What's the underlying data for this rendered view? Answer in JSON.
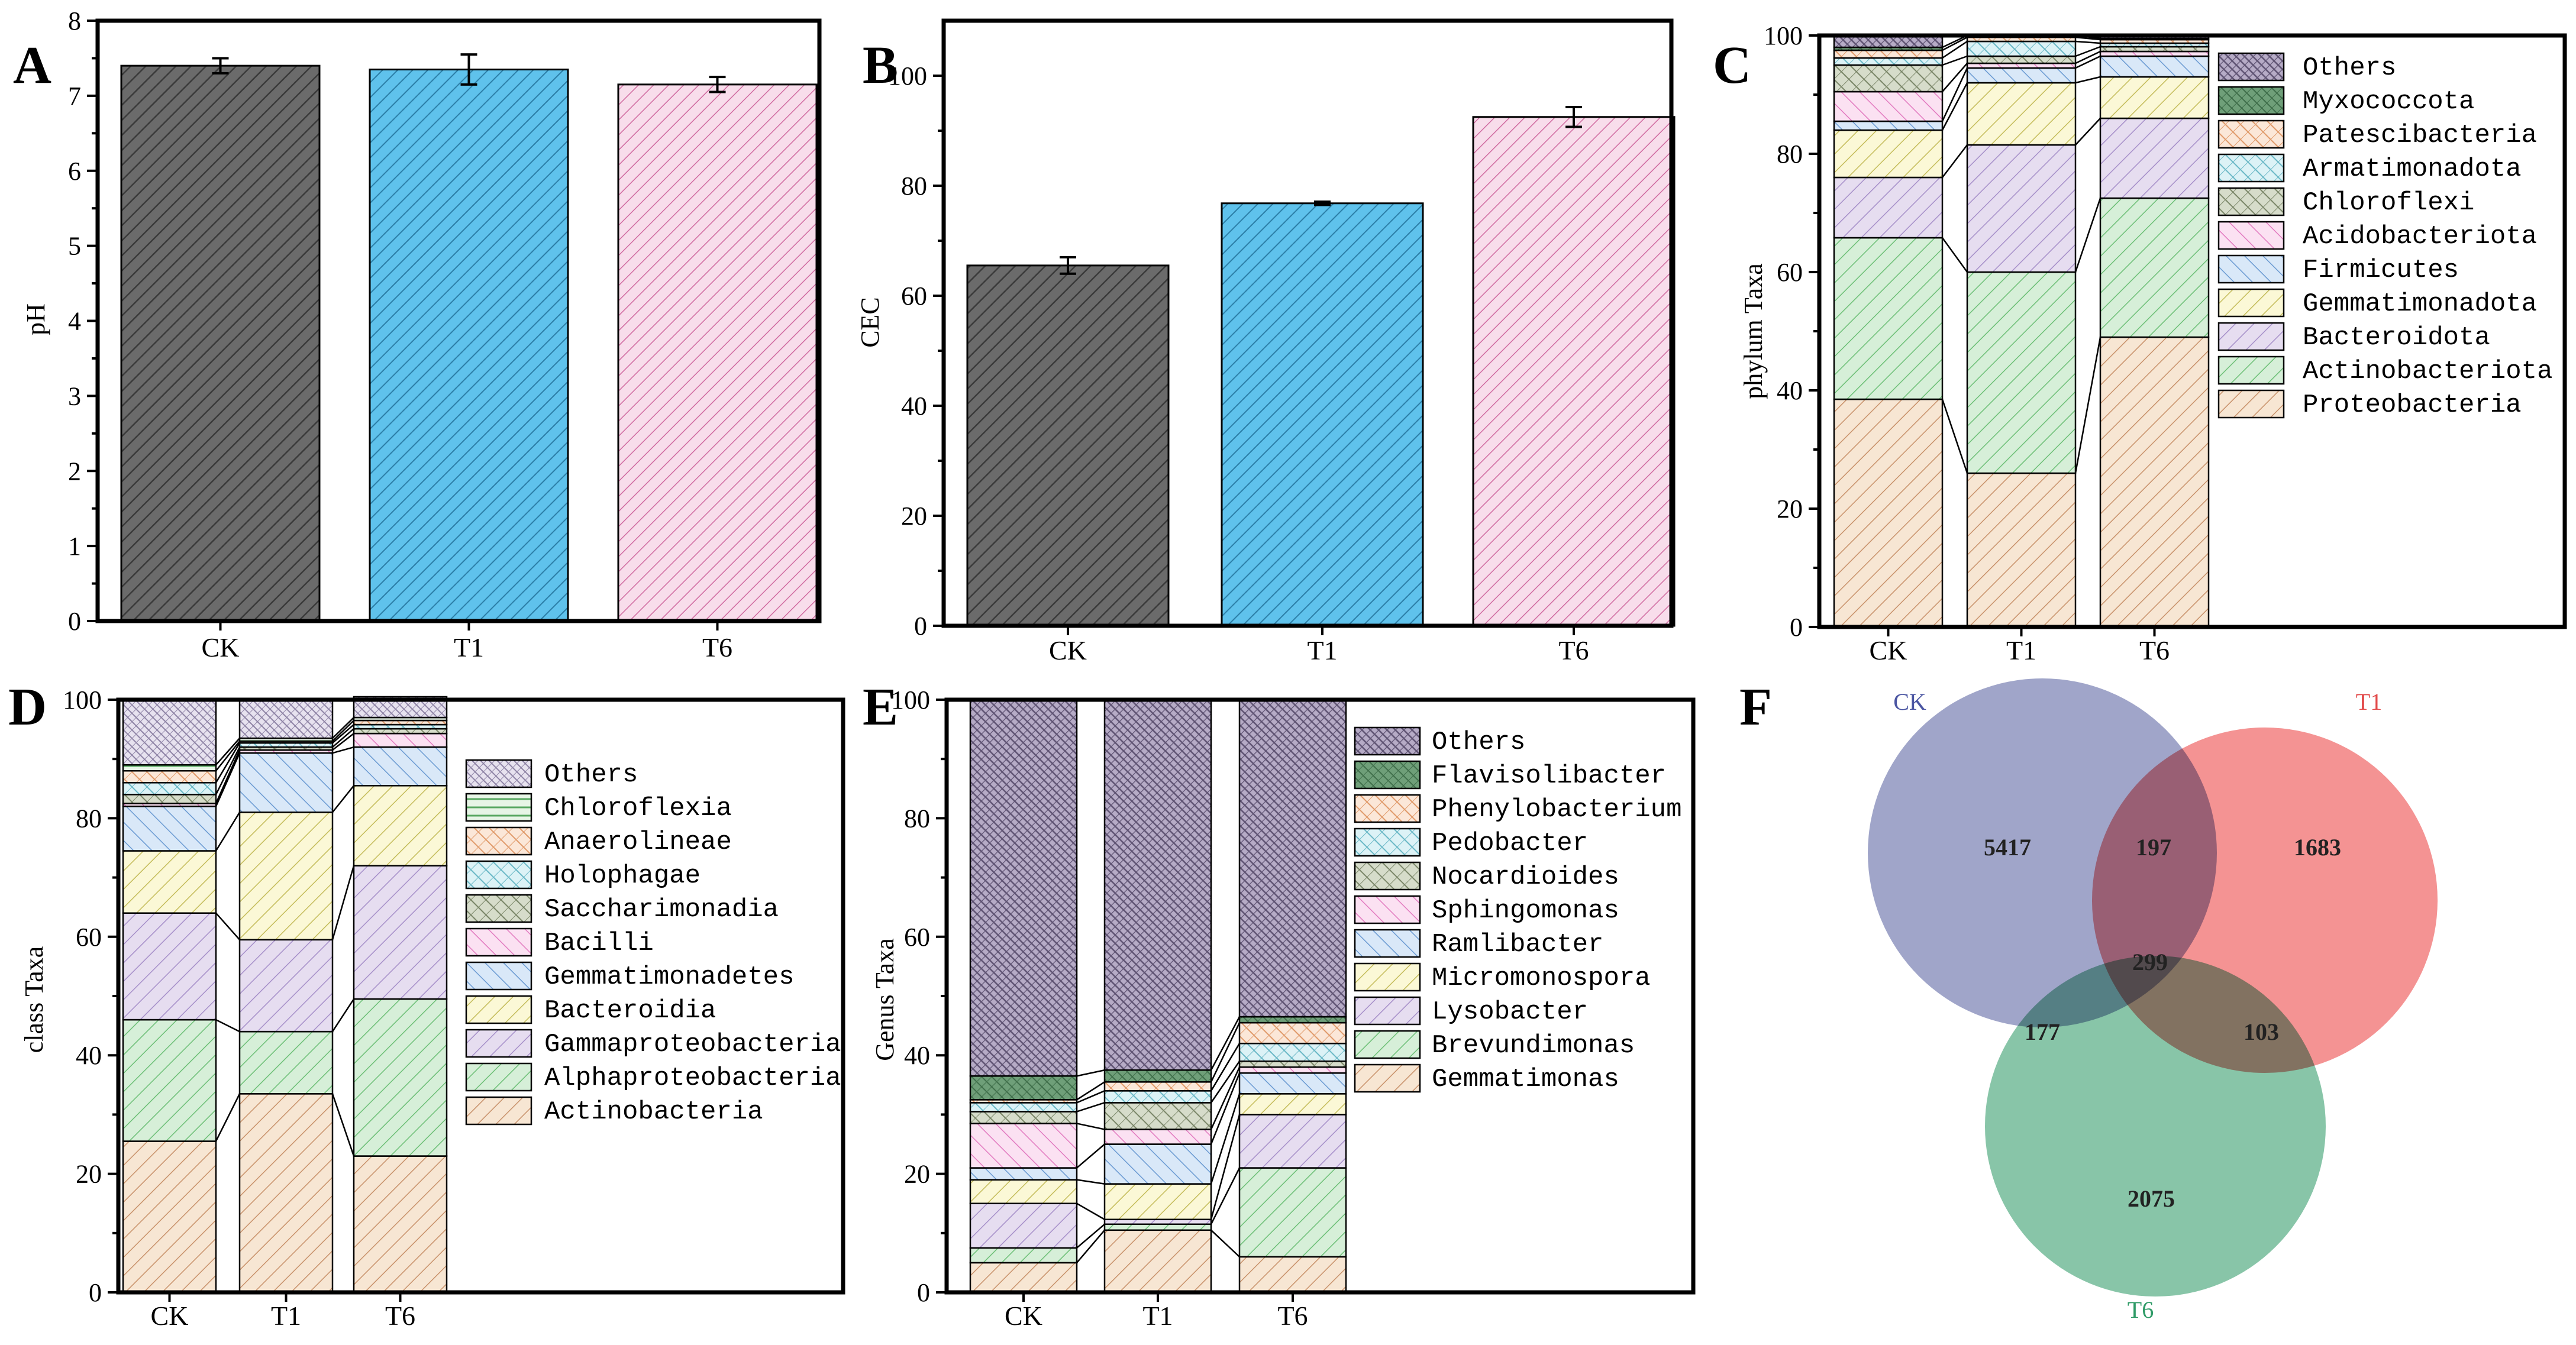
{
  "panels": {
    "A": {
      "letter": "A"
    },
    "B": {
      "letter": "B"
    },
    "C": {
      "letter": "C"
    },
    "D": {
      "letter": "D"
    },
    "E": {
      "letter": "E"
    },
    "F": {
      "letter": "F"
    }
  },
  "colors": {
    "CK": "#6b6b6b",
    "T1": "#5fc2ec",
    "T6": "#f4cde3"
  },
  "chart_data": [
    {
      "id": "A",
      "type": "bar",
      "categories": [
        "CK",
        "T1",
        "T6"
      ],
      "values": [
        7.4,
        7.35,
        7.15
      ],
      "errors": [
        0.1,
        0.2,
        0.1
      ],
      "ylabel": "pH",
      "ylim": [
        0,
        8
      ],
      "yticks": [
        "0",
        "1",
        "2",
        "3",
        "4",
        "5",
        "6",
        "7",
        "8"
      ]
    },
    {
      "id": "B",
      "type": "bar",
      "categories": [
        "CK",
        "T1",
        "T6"
      ],
      "values": [
        65.5,
        76.8,
        92.5
      ],
      "errors": [
        1.5,
        0.3,
        1.8
      ],
      "ylabel": "CEC",
      "ylim": [
        0,
        110
      ],
      "yticks": [
        "0",
        "20",
        "40",
        "60",
        "80",
        "100"
      ]
    },
    {
      "id": "C",
      "type": "bar",
      "stacked": true,
      "categories": [
        "CK",
        "T1",
        "T6"
      ],
      "ylabel": "phylum Taxa",
      "ylim": [
        0,
        100
      ],
      "yticks": [
        "0",
        "20",
        "40",
        "60",
        "80",
        "100"
      ],
      "series": [
        {
          "name": "Proteobacteria",
          "values": [
            38.5,
            26.0,
            49.0
          ]
        },
        {
          "name": "Actinobacteriota",
          "values": [
            27.3,
            34.0,
            23.5
          ]
        },
        {
          "name": "Bacteroidota",
          "values": [
            10.2,
            21.5,
            13.5
          ]
        },
        {
          "name": "Gemmatimonadota",
          "values": [
            8.0,
            10.5,
            7.0
          ]
        },
        {
          "name": "Firmicutes",
          "values": [
            1.5,
            2.5,
            3.5
          ]
        },
        {
          "name": "Acidobacteriota",
          "values": [
            5.0,
            0.8,
            0.8
          ]
        },
        {
          "name": "Chloroflexi",
          "values": [
            4.5,
            1.2,
            0.8
          ]
        },
        {
          "name": "Armatimonadota",
          "values": [
            1.2,
            2.5,
            0.6
          ]
        },
        {
          "name": "Patescibacteria",
          "values": [
            1.3,
            0.7,
            0.6
          ]
        },
        {
          "name": "Myxococcota",
          "values": [
            0.5,
            0.3,
            0.2
          ]
        },
        {
          "name": "Others",
          "values": [
            2.0,
            0.0,
            0.5
          ]
        }
      ]
    },
    {
      "id": "D",
      "type": "bar",
      "stacked": true,
      "categories": [
        "CK",
        "T1",
        "T6"
      ],
      "ylabel": "class Taxa",
      "ylim": [
        0,
        100
      ],
      "yticks": [
        "0",
        "20",
        "40",
        "60",
        "80",
        "100"
      ],
      "series": [
        {
          "name": "Actinobacteria",
          "values": [
            25.5,
            33.5,
            23.0
          ]
        },
        {
          "name": "Alphaproteobacteria",
          "values": [
            20.5,
            10.5,
            26.5
          ]
        },
        {
          "name": "Gammaproteobacteria",
          "values": [
            18.0,
            15.5,
            22.5
          ]
        },
        {
          "name": "Bacteroidia",
          "values": [
            10.5,
            21.5,
            13.5
          ]
        },
        {
          "name": "Gemmatimonadetes",
          "values": [
            7.5,
            10.0,
            6.5
          ]
        },
        {
          "name": "Bacilli",
          "values": [
            0.5,
            0.5,
            2.3
          ]
        },
        {
          "name": "Saccharimonadia",
          "values": [
            1.5,
            0.5,
            0.8
          ]
        },
        {
          "name": "Holophagae",
          "values": [
            2.0,
            0.7,
            0.7
          ]
        },
        {
          "name": "Anaerolineae",
          "values": [
            2.0,
            0.3,
            0.7
          ]
        },
        {
          "name": "Chloroflexia",
          "values": [
            1.0,
            0.5,
            0.5
          ]
        },
        {
          "name": "Others",
          "values": [
            11.0,
            6.5,
            3.5
          ]
        }
      ]
    },
    {
      "id": "E",
      "type": "bar",
      "stacked": true,
      "categories": [
        "CK",
        "T1",
        "T6"
      ],
      "ylabel": "Genus Taxa",
      "ylim": [
        0,
        100
      ],
      "yticks": [
        "0",
        "20",
        "40",
        "60",
        "80",
        "100"
      ],
      "series": [
        {
          "name": "Gemmatimonas",
          "values": [
            5.0,
            10.5,
            6.0
          ]
        },
        {
          "name": "Brevundimonas",
          "values": [
            2.5,
            1.0,
            15.0
          ]
        },
        {
          "name": "Lysobacter",
          "values": [
            7.5,
            0.8,
            9.0
          ]
        },
        {
          "name": "Micromonospora",
          "values": [
            4.0,
            6.0,
            3.5
          ]
        },
        {
          "name": "Ramlibacter",
          "values": [
            2.0,
            6.7,
            3.5
          ]
        },
        {
          "name": "Sphingomonas",
          "values": [
            7.5,
            2.5,
            1.0
          ]
        },
        {
          "name": "Nocardioides",
          "values": [
            2.0,
            4.5,
            1.0
          ]
        },
        {
          "name": "Pedobacter",
          "values": [
            1.5,
            2.0,
            3.0
          ]
        },
        {
          "name": "Phenylobacterium",
          "values": [
            0.5,
            1.5,
            3.5
          ]
        },
        {
          "name": "Flavisolibacter",
          "values": [
            4.0,
            2.0,
            1.0
          ]
        },
        {
          "name": "Others",
          "values": [
            63.5,
            62.5,
            53.5
          ]
        }
      ]
    },
    {
      "id": "F",
      "type": "venn",
      "sets": [
        "CK",
        "T1",
        "T6"
      ],
      "counts": {
        "CK_only": "5417",
        "T1_only": "1683",
        "T6_only": "2075",
        "CK_T1": "197",
        "CK_T6": "177",
        "T1_T6": "103",
        "all": "299"
      },
      "set_colors": [
        "#7b82b4",
        "#f06a6a",
        "#5aae86"
      ],
      "label_colors": [
        "#4a55a2",
        "#e24a4a",
        "#2e9a66"
      ]
    }
  ]
}
